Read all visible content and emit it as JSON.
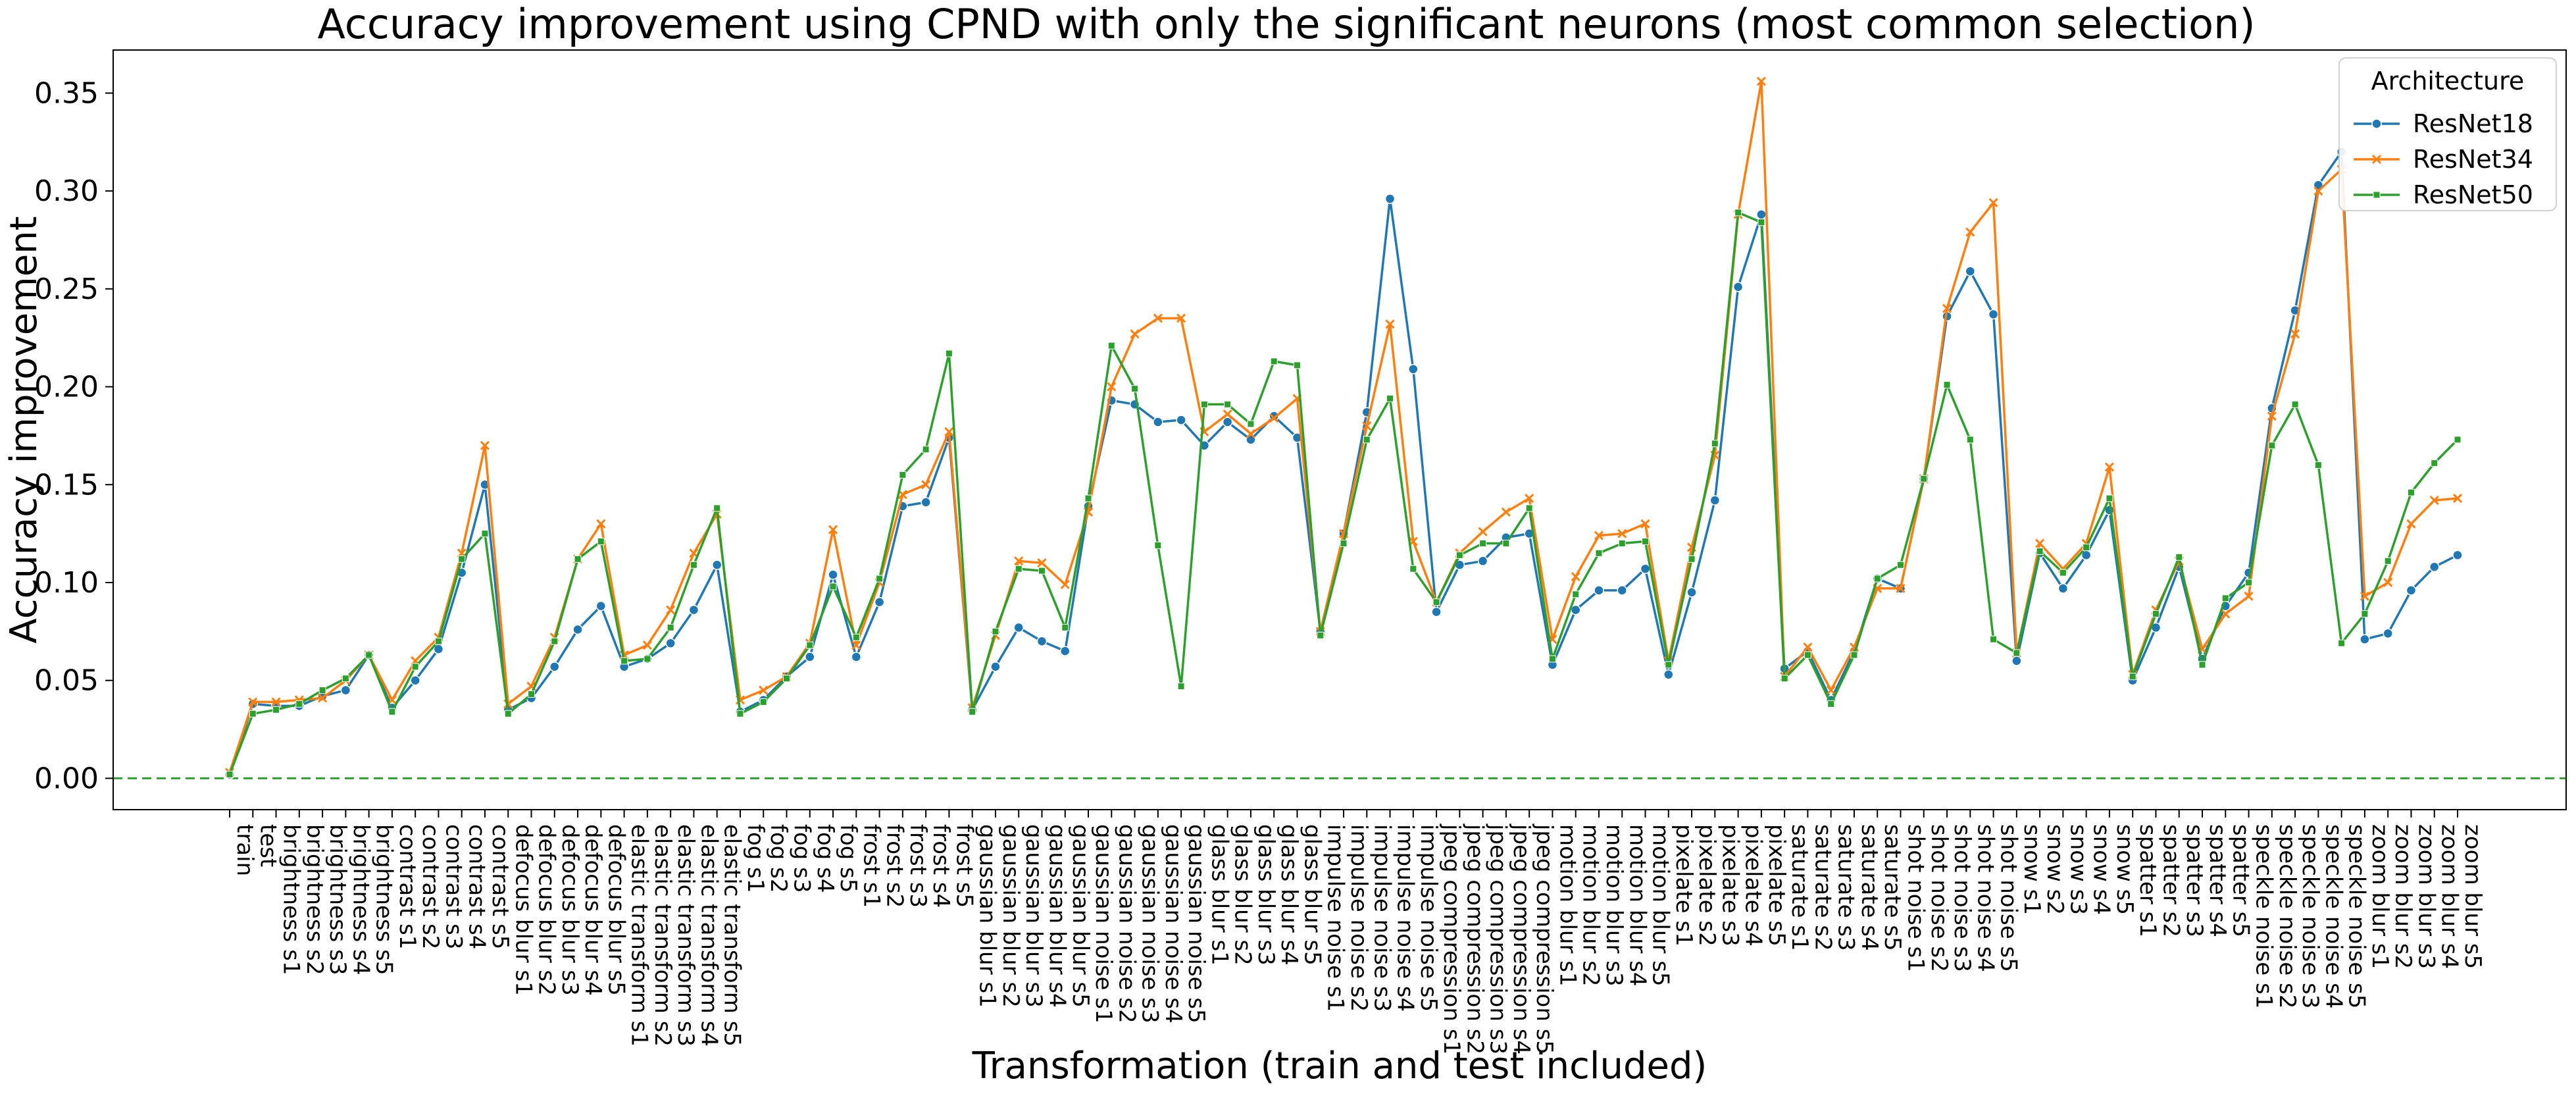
{
  "chart_data": {
    "type": "line",
    "title": "Accuracy improvement using CPND with only the significant neurons (most common selection)",
    "xlabel": "Transformation (train and test included)",
    "ylabel": "Accuracy improvement",
    "ylim": [
      -0.016,
      0.372
    ],
    "yticks": [
      0.0,
      0.05,
      0.1,
      0.15,
      0.2,
      0.25,
      0.3,
      0.35
    ],
    "ytick_labels": [
      "0.00",
      "0.05",
      "0.10",
      "0.15",
      "0.20",
      "0.25",
      "0.30",
      "0.35"
    ],
    "grid": false,
    "reference_line": {
      "y": 0.0,
      "style": "dashed",
      "color": "#2ca02c"
    },
    "legend": {
      "title": "Architecture",
      "placement": "top-right"
    },
    "categories": [
      "train",
      "test",
      "brightness s1",
      "brightness s2",
      "brightness s3",
      "brightness s4",
      "brightness s5",
      "contrast s1",
      "contrast s2",
      "contrast s3",
      "contrast s4",
      "contrast s5",
      "defocus blur s1",
      "defocus blur s2",
      "defocus blur s3",
      "defocus blur s4",
      "defocus blur s5",
      "elastic transform s1",
      "elastic transform s2",
      "elastic transform s3",
      "elastic transform s4",
      "elastic transform s5",
      "fog s1",
      "fog s2",
      "fog s3",
      "fog s4",
      "fog s5",
      "frost s1",
      "frost s2",
      "frost s3",
      "frost s4",
      "frost s5",
      "gaussian blur s1",
      "gaussian blur s2",
      "gaussian blur s3",
      "gaussian blur s4",
      "gaussian blur s5",
      "gaussian noise s1",
      "gaussian noise s2",
      "gaussian noise s3",
      "gaussian noise s4",
      "gaussian noise s5",
      "glass blur s1",
      "glass blur s2",
      "glass blur s3",
      "glass blur s4",
      "glass blur s5",
      "impulse noise s1",
      "impulse noise s2",
      "impulse noise s3",
      "impulse noise s4",
      "impulse noise s5",
      "jpeg compression s1",
      "jpeg compression s2",
      "jpeg compression s3",
      "jpeg compression s4",
      "jpeg compression s5",
      "motion blur s1",
      "motion blur s2",
      "motion blur s3",
      "motion blur s4",
      "motion blur s5",
      "pixelate s1",
      "pixelate s2",
      "pixelate s3",
      "pixelate s4",
      "pixelate s5",
      "saturate s1",
      "saturate s2",
      "saturate s3",
      "saturate s4",
      "saturate s5",
      "shot noise s1",
      "shot noise s2",
      "shot noise s3",
      "shot noise s4",
      "shot noise s5",
      "snow s1",
      "snow s2",
      "snow s3",
      "snow s4",
      "snow s5",
      "spatter s1",
      "spatter s2",
      "spatter s3",
      "spatter s4",
      "spatter s5",
      "speckle noise s1",
      "speckle noise s2",
      "speckle noise s3",
      "speckle noise s4",
      "speckle noise s5",
      "zoom blur s1",
      "zoom blur s2",
      "zoom blur s3",
      "zoom blur s4",
      "zoom blur s5"
    ],
    "series": [
      {
        "name": "ResNet18",
        "color": "#1f77b4",
        "marker": "circle",
        "values": [
          0.002,
          0.038,
          0.037,
          0.037,
          0.042,
          0.045,
          0.063,
          0.036,
          0.05,
          0.066,
          0.105,
          0.15,
          0.035,
          0.041,
          0.057,
          0.076,
          0.088,
          0.057,
          0.061,
          0.069,
          0.086,
          0.109,
          0.034,
          0.04,
          0.052,
          0.062,
          0.104,
          0.062,
          0.09,
          0.139,
          0.141,
          0.174,
          0.035,
          0.057,
          0.077,
          0.07,
          0.065,
          0.139,
          0.193,
          0.191,
          0.182,
          0.183,
          0.17,
          0.182,
          0.173,
          0.185,
          0.174,
          0.075,
          0.125,
          0.187,
          0.296,
          0.209,
          0.085,
          0.109,
          0.111,
          0.123,
          0.125,
          0.058,
          0.086,
          0.096,
          0.096,
          0.107,
          0.053,
          0.095,
          0.142,
          0.251,
          0.288,
          0.056,
          0.065,
          0.04,
          0.065,
          0.102,
          0.097,
          0.153,
          0.236,
          0.259,
          0.237,
          0.06,
          0.115,
          0.097,
          0.114,
          0.137,
          0.05,
          0.077,
          0.108,
          0.061,
          0.088,
          0.105,
          0.189,
          0.239,
          0.303,
          0.32,
          0.071,
          0.074,
          0.096,
          0.108,
          0.114
        ]
      },
      {
        "name": "ResNet34",
        "color": "#ff7f0e",
        "marker": "x",
        "values": [
          0.003,
          0.039,
          0.039,
          0.04,
          0.041,
          0.05,
          0.063,
          0.04,
          0.06,
          0.072,
          0.115,
          0.17,
          0.038,
          0.047,
          0.072,
          0.112,
          0.13,
          0.063,
          0.068,
          0.086,
          0.115,
          0.135,
          0.04,
          0.045,
          0.052,
          0.069,
          0.127,
          0.068,
          0.1,
          0.145,
          0.15,
          0.177,
          0.036,
          0.073,
          0.111,
          0.11,
          0.099,
          0.136,
          0.2,
          0.227,
          0.235,
          0.235,
          0.177,
          0.186,
          0.176,
          0.184,
          0.194,
          0.075,
          0.125,
          0.18,
          0.232,
          0.121,
          0.09,
          0.115,
          0.126,
          0.136,
          0.143,
          0.071,
          0.103,
          0.124,
          0.125,
          0.13,
          0.06,
          0.118,
          0.165,
          0.288,
          0.356,
          0.052,
          0.067,
          0.045,
          0.067,
          0.097,
          0.097,
          0.153,
          0.24,
          0.279,
          0.294,
          0.064,
          0.12,
          0.107,
          0.12,
          0.159,
          0.053,
          0.086,
          0.111,
          0.066,
          0.084,
          0.093,
          0.185,
          0.227,
          0.3,
          0.311,
          0.093,
          0.1,
          0.13,
          0.142,
          0.143
        ]
      },
      {
        "name": "ResNet50",
        "color": "#2ca02c",
        "marker": "square",
        "values": [
          0.002,
          0.033,
          0.035,
          0.038,
          0.045,
          0.051,
          0.063,
          0.034,
          0.057,
          0.07,
          0.112,
          0.125,
          0.033,
          0.043,
          0.07,
          0.112,
          0.121,
          0.06,
          0.061,
          0.077,
          0.109,
          0.138,
          0.033,
          0.039,
          0.051,
          0.068,
          0.098,
          0.072,
          0.102,
          0.155,
          0.168,
          0.217,
          0.034,
          0.075,
          0.107,
          0.106,
          0.077,
          0.143,
          0.221,
          0.199,
          0.119,
          0.047,
          0.191,
          0.191,
          0.181,
          0.213,
          0.211,
          0.073,
          0.12,
          0.173,
          0.194,
          0.107,
          0.09,
          0.114,
          0.12,
          0.12,
          0.138,
          0.061,
          0.094,
          0.115,
          0.12,
          0.121,
          0.058,
          0.112,
          0.171,
          0.289,
          0.284,
          0.051,
          0.063,
          0.038,
          0.063,
          0.102,
          0.109,
          0.153,
          0.201,
          0.173,
          0.071,
          0.064,
          0.116,
          0.105,
          0.118,
          0.143,
          0.052,
          0.084,
          0.113,
          0.058,
          0.092,
          0.1,
          0.17,
          0.191,
          0.16,
          0.069,
          0.084,
          0.111,
          0.146,
          0.161,
          0.173
        ]
      }
    ]
  }
}
